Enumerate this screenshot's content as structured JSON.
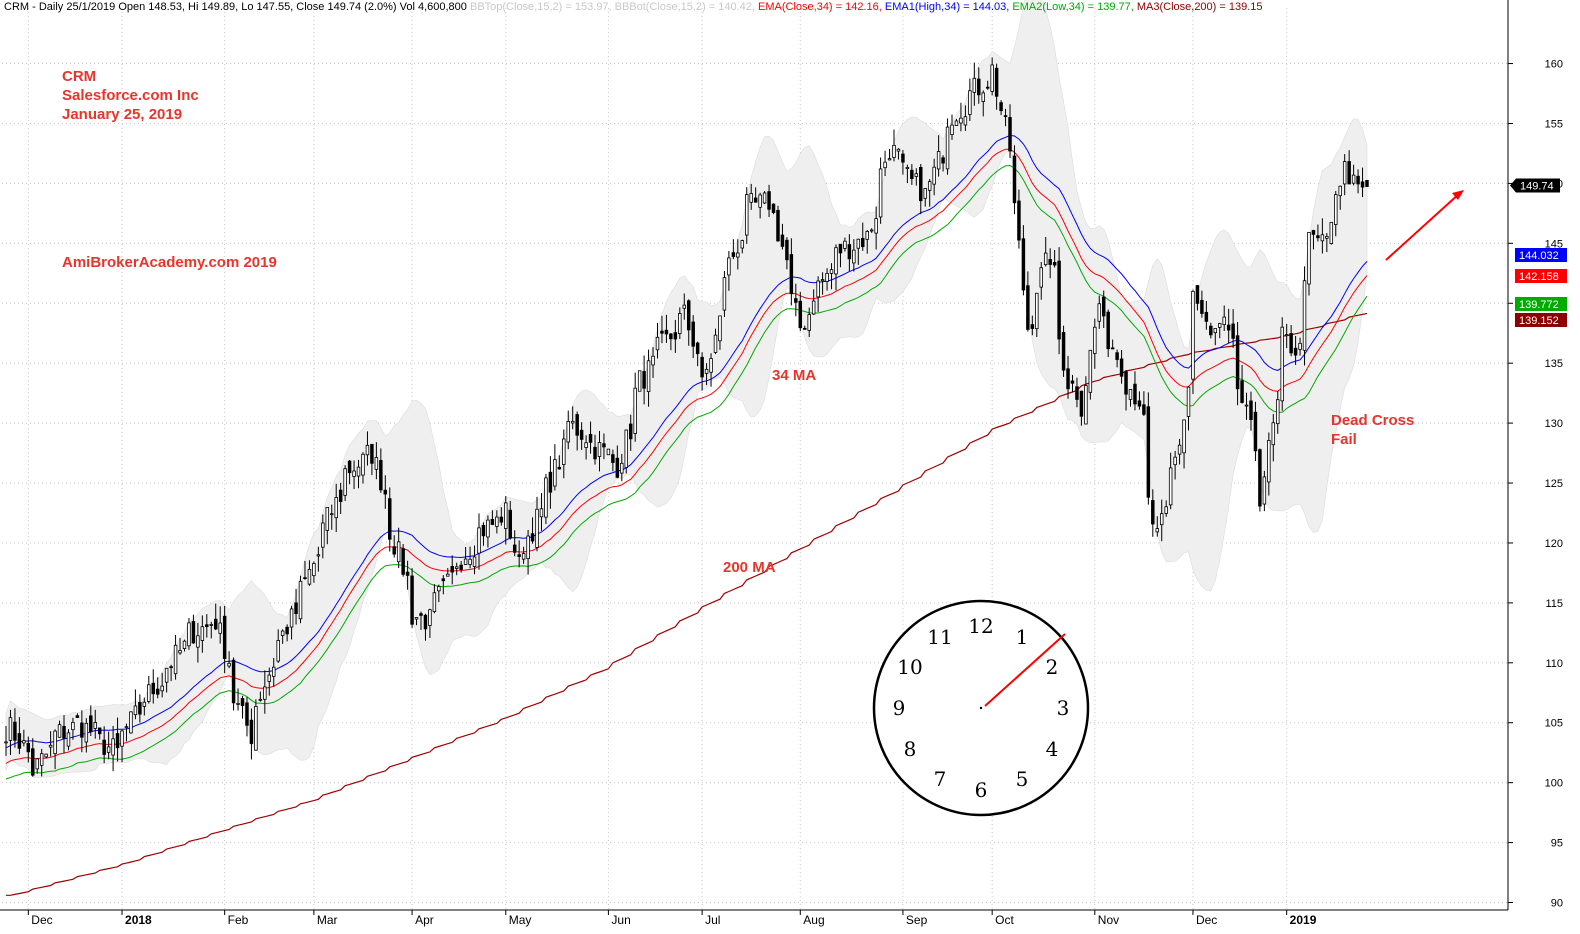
{
  "header": {
    "title": "CRM - Daily 25/1/2019 Open 148.53, Hi 149.89, Lo 147.55, Close 149.74 (2.0%) Vol 4,600,800",
    "bbtop": "BBTop(Close,15,2) = 153.97,",
    "bbbot": "BBBot(Close,15,2) = 140.42,",
    "ema": "EMA(Close,34) = 142.16,",
    "ema1": "EMA1(High,34) = 144.03,",
    "ema2": "EMA2(Low,34) = 139.77,",
    "ma3": "MA3(Close,200) = 139.15"
  },
  "annotations": {
    "ticker": "CRM",
    "company": "Salesforce.com Inc",
    "date": "January 25, 2019",
    "site": "AmiBrokerAcademy.com  2019",
    "ma34": "34 MA",
    "ma200": "200 MA",
    "dead_cross_1": "Dead Cross",
    "dead_cross_2": "Fail"
  },
  "colors": {
    "ema_high": "#0000ff",
    "ema_close": "#ff0000",
    "ema_low": "#00aa00",
    "ma200": "#a00000",
    "band_fill": "#efefef",
    "annotation": "#e8352c"
  },
  "chart_data": {
    "type": "candlestick",
    "y_ticks": [
      90,
      95,
      100,
      105,
      110,
      115,
      120,
      125,
      130,
      135,
      140,
      145,
      150,
      155,
      160
    ],
    "ylim": [
      89.5,
      165
    ],
    "x_ticks": [
      "Dec",
      "2018",
      "Feb",
      "Mar",
      "Apr",
      "May",
      "Jun",
      "Jul",
      "Aug",
      "Sep",
      "Oct",
      "Nov",
      "Dec",
      "2019"
    ],
    "grid": true,
    "price_badges": [
      {
        "label": "149.74",
        "value": 149.74,
        "color": "#000000"
      },
      {
        "label": "144.032",
        "value": 144.032,
        "color": "#0000ff"
      },
      {
        "label": "142.158",
        "value": 142.158,
        "color": "#ff0000"
      },
      {
        "label": "139.772",
        "value": 139.772,
        "color": "#00aa00"
      },
      {
        "label": "139.152",
        "value": 139.152,
        "color": "#8b0000"
      }
    ],
    "close_anchors": [
      [
        "2017-11-27",
        104.5
      ],
      [
        "2017-12-04",
        101
      ],
      [
        "2017-12-11",
        104
      ],
      [
        "2017-12-18",
        105
      ],
      [
        "2017-12-29",
        102.5
      ],
      [
        "2018-01-05",
        106
      ],
      [
        "2018-01-12",
        108.5
      ],
      [
        "2018-01-22",
        112.5
      ],
      [
        "2018-01-30",
        113.5
      ],
      [
        "2018-02-05",
        107
      ],
      [
        "2018-02-09",
        104
      ],
      [
        "2018-02-16",
        110
      ],
      [
        "2018-02-26",
        116
      ],
      [
        "2018-03-06",
        122
      ],
      [
        "2018-03-12",
        126
      ],
      [
        "2018-03-20",
        127.5
      ],
      [
        "2018-03-27",
        120
      ],
      [
        "2018-04-02",
        114
      ],
      [
        "2018-04-06",
        113.5
      ],
      [
        "2018-04-16",
        118.5
      ],
      [
        "2018-04-23",
        121
      ],
      [
        "2018-05-01",
        122.5
      ],
      [
        "2018-05-04",
        118
      ],
      [
        "2018-05-14",
        124.5
      ],
      [
        "2018-05-21",
        130
      ],
      [
        "2018-05-29",
        128
      ],
      [
        "2018-06-05",
        126.5
      ],
      [
        "2018-06-12",
        133.5
      ],
      [
        "2018-06-19",
        136.5
      ],
      [
        "2018-06-26",
        139
      ],
      [
        "2018-07-02",
        133
      ],
      [
        "2018-07-09",
        142.5
      ],
      [
        "2018-07-16",
        148
      ],
      [
        "2018-07-23",
        148.5
      ],
      [
        "2018-07-27",
        143.5
      ],
      [
        "2018-08-01",
        138
      ],
      [
        "2018-08-07",
        141.5
      ],
      [
        "2018-08-14",
        144.5
      ],
      [
        "2018-08-22",
        145.5
      ],
      [
        "2018-08-29",
        153
      ],
      [
        "2018-09-05",
        150
      ],
      [
        "2018-09-10",
        149
      ],
      [
        "2018-09-17",
        155.5
      ],
      [
        "2018-09-24",
        157.5
      ],
      [
        "2018-10-01",
        159.5
      ],
      [
        "2018-10-04",
        154.5
      ],
      [
        "2018-10-08",
        148
      ],
      [
        "2018-10-11",
        138
      ],
      [
        "2018-10-18",
        144
      ],
      [
        "2018-10-24",
        133.5
      ],
      [
        "2018-10-29",
        131.5
      ],
      [
        "2018-11-02",
        140
      ],
      [
        "2018-11-09",
        135
      ],
      [
        "2018-11-15",
        132
      ],
      [
        "2018-11-20",
        121
      ],
      [
        "2018-11-23",
        122
      ],
      [
        "2018-11-28",
        128
      ],
      [
        "2018-12-03",
        141
      ],
      [
        "2018-12-07",
        137
      ],
      [
        "2018-12-12",
        138
      ],
      [
        "2018-12-17",
        133
      ],
      [
        "2018-12-21",
        128
      ],
      [
        "2018-12-24",
        124
      ],
      [
        "2018-12-31",
        137
      ],
      [
        "2019-01-04",
        136
      ],
      [
        "2019-01-08",
        145
      ],
      [
        "2019-01-14",
        145.5
      ],
      [
        "2019-01-18",
        151
      ],
      [
        "2019-01-25",
        149.74
      ]
    ],
    "ma200_anchors": [
      [
        "2017-11-27",
        90.6
      ],
      [
        "2018-01-01",
        93.2
      ],
      [
        "2018-02-01",
        96
      ],
      [
        "2018-03-01",
        98.5
      ],
      [
        "2018-04-01",
        102
      ],
      [
        "2018-05-01",
        105.4
      ],
      [
        "2018-06-01",
        109.5
      ],
      [
        "2018-07-01",
        114.5
      ],
      [
        "2018-08-01",
        119.5
      ],
      [
        "2018-09-01",
        124.5
      ],
      [
        "2018-10-01",
        129.5
      ],
      [
        "2018-11-01",
        133.5
      ],
      [
        "2018-12-01",
        135.8
      ],
      [
        "2019-01-01",
        137.3
      ],
      [
        "2019-01-25",
        139.15
      ]
    ]
  },
  "clock": {
    "numbers": [
      "12",
      "1",
      "2",
      "3",
      "4",
      "5",
      "6",
      "7",
      "8",
      "9",
      "10",
      "11"
    ]
  }
}
